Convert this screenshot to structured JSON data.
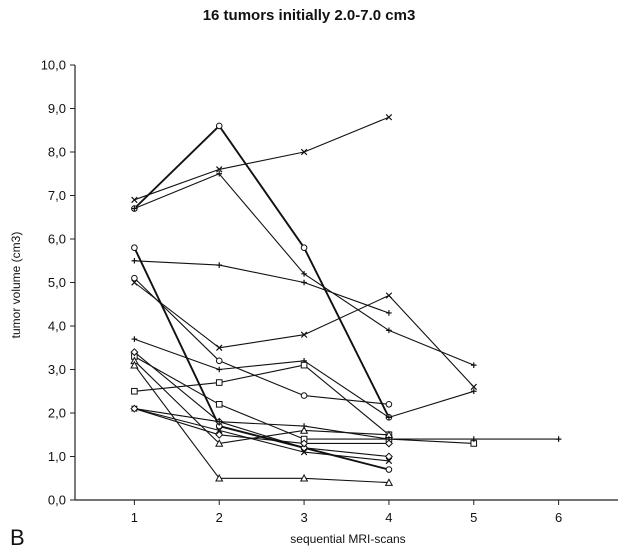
{
  "chart_data": {
    "type": "line",
    "title": "16 tumors initially 2.0-7.0 cm3",
    "xlabel": "sequential MRI-scans",
    "ylabel": "tumor volume (cm3)",
    "panel_label": "B",
    "xlim": [
      0.3,
      6.7
    ],
    "ylim": [
      0,
      10
    ],
    "x_ticks": [
      "1",
      "2",
      "3",
      "4",
      "5",
      "6"
    ],
    "y_ticks": [
      "0,0",
      "1,0",
      "2,0",
      "3,0",
      "4,0",
      "5,0",
      "6,0",
      "7,0",
      "8,0",
      "9,0",
      "10,0"
    ],
    "grid": false,
    "legend": "none",
    "series": [
      {
        "marker": "x",
        "points": [
          [
            1,
            6.9
          ],
          [
            2,
            7.6
          ],
          [
            3,
            8.0
          ],
          [
            4,
            8.8
          ]
        ]
      },
      {
        "marker": "circle",
        "points": [
          [
            1,
            6.7
          ],
          [
            2,
            8.6
          ],
          [
            3,
            5.8
          ],
          [
            4,
            1.9
          ]
        ]
      },
      {
        "marker": "plus",
        "points": [
          [
            1,
            6.7
          ],
          [
            2,
            7.5
          ],
          [
            3,
            5.2
          ],
          [
            4,
            3.9
          ],
          [
            5,
            3.1
          ]
        ]
      },
      {
        "marker": "plus",
        "points": [
          [
            1,
            5.5
          ],
          [
            2,
            5.4
          ],
          [
            3,
            5.0
          ],
          [
            4,
            4.3
          ]
        ]
      },
      {
        "marker": "circle",
        "points": [
          [
            1,
            5.8
          ],
          [
            2,
            1.7
          ],
          [
            3,
            1.2
          ],
          [
            4,
            0.7
          ]
        ]
      },
      {
        "marker": "circle",
        "points": [
          [
            1,
            5.1
          ],
          [
            2,
            3.2
          ],
          [
            3,
            2.4
          ],
          [
            4,
            2.2
          ]
        ]
      },
      {
        "marker": "x",
        "points": [
          [
            1,
            5.0
          ],
          [
            2,
            3.5
          ],
          [
            3,
            3.8
          ],
          [
            4,
            4.7
          ],
          [
            5,
            2.6
          ]
        ]
      },
      {
        "marker": "plus",
        "points": [
          [
            1,
            3.7
          ],
          [
            2,
            3.0
          ],
          [
            3,
            3.2
          ],
          [
            4,
            1.9
          ],
          [
            5,
            2.5
          ]
        ]
      },
      {
        "marker": "square",
        "points": [
          [
            1,
            2.5
          ],
          [
            2,
            2.7
          ],
          [
            3,
            3.1
          ],
          [
            4,
            1.5
          ]
        ]
      },
      {
        "marker": "square",
        "points": [
          [
            1,
            3.3
          ],
          [
            2,
            2.2
          ],
          [
            3,
            1.4
          ],
          [
            4,
            1.4
          ],
          [
            5,
            1.3
          ]
        ]
      },
      {
        "marker": "diamond",
        "points": [
          [
            1,
            3.4
          ],
          [
            2,
            1.8
          ],
          [
            3,
            1.2
          ],
          [
            4,
            1.0
          ]
        ]
      },
      {
        "marker": "triangle",
        "points": [
          [
            1,
            3.2
          ],
          [
            2,
            1.3
          ],
          [
            3,
            1.6
          ],
          [
            4,
            1.5
          ]
        ]
      },
      {
        "marker": "triangle",
        "points": [
          [
            1,
            3.1
          ],
          [
            2,
            0.5
          ],
          [
            3,
            0.5
          ],
          [
            4,
            0.4
          ]
        ]
      },
      {
        "marker": "plus",
        "points": [
          [
            1,
            2.1
          ],
          [
            2,
            1.8
          ],
          [
            3,
            1.7
          ],
          [
            4,
            1.4
          ],
          [
            5,
            1.4
          ],
          [
            6,
            1.4
          ]
        ]
      },
      {
        "marker": "x",
        "points": [
          [
            1,
            2.1
          ],
          [
            2,
            1.6
          ],
          [
            3,
            1.1
          ],
          [
            4,
            0.9
          ]
        ]
      },
      {
        "marker": "diamond",
        "points": [
          [
            1,
            2.1
          ],
          [
            2,
            1.5
          ],
          [
            3,
            1.3
          ],
          [
            4,
            1.3
          ]
        ]
      }
    ]
  }
}
